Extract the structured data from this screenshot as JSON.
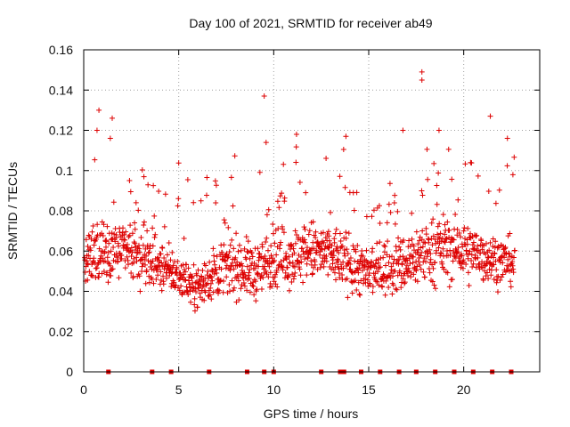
{
  "chart_data": {
    "type": "scatter",
    "title": "Day 100 of 2021, SRMTID for receiver ab49",
    "xlabel": "GPS time / hours",
    "ylabel": "SRMTID / TECUs",
    "xlim": [
      0,
      24
    ],
    "ylim": [
      0,
      0.16
    ],
    "grid": true,
    "marker": "plus",
    "color": "#dd0000",
    "x_ticks": [
      0,
      5,
      10,
      15,
      20
    ],
    "x_tick_labels": [
      "0",
      "5",
      "10",
      "15",
      "20"
    ],
    "y_ticks": [
      0,
      0.02,
      0.04,
      0.06,
      0.08,
      0.1,
      0.12,
      0.14,
      0.16
    ],
    "y_tick_labels": [
      "0",
      "0.02",
      "0.04",
      "0.06",
      "0.08",
      "0.1",
      "0.12",
      "0.14",
      "0.16"
    ],
    "series": [
      {
        "name": "SRMTID",
        "note": "dense scatter of ~2000 points; band representation by hour (median and spread) plus notable outliers",
        "hourly_center": [
          0.052,
          0.062,
          0.06,
          0.056,
          0.052,
          0.048,
          0.042,
          0.05,
          0.053,
          0.05,
          0.056,
          0.058,
          0.06,
          0.058,
          0.055,
          0.048,
          0.052,
          0.054,
          0.06,
          0.062,
          0.06,
          0.058,
          0.055
        ],
        "hourly_spread": [
          0.018,
          0.022,
          0.02,
          0.018,
          0.016,
          0.015,
          0.014,
          0.018,
          0.02,
          0.019,
          0.02,
          0.021,
          0.021,
          0.02,
          0.02,
          0.018,
          0.019,
          0.02,
          0.022,
          0.022,
          0.021,
          0.02,
          0.016
        ],
        "outliers": [
          {
            "x": 0.8,
            "y": 0.13
          },
          {
            "x": 0.7,
            "y": 0.12
          },
          {
            "x": 1.5,
            "y": 0.126
          },
          {
            "x": 1.4,
            "y": 0.116
          },
          {
            "x": 9.5,
            "y": 0.137
          },
          {
            "x": 9.6,
            "y": 0.114
          },
          {
            "x": 11.2,
            "y": 0.118
          },
          {
            "x": 13.8,
            "y": 0.117
          },
          {
            "x": 17.8,
            "y": 0.149
          },
          {
            "x": 17.8,
            "y": 0.145
          },
          {
            "x": 16.8,
            "y": 0.12
          },
          {
            "x": 18.7,
            "y": 0.12
          },
          {
            "x": 21.4,
            "y": 0.127
          },
          {
            "x": 22.3,
            "y": 0.116
          }
        ]
      },
      {
        "name": "data-gap-markers",
        "note": "small red squares on the x-axis at y=0",
        "x": [
          1.3,
          3.6,
          4.6,
          6.6,
          8.6,
          9.5,
          10.0,
          12.5,
          13.5,
          13.7,
          14.6,
          15.6,
          16.6,
          17.5,
          18.5,
          19.5,
          20.5,
          21.5,
          22.5
        ]
      }
    ]
  }
}
